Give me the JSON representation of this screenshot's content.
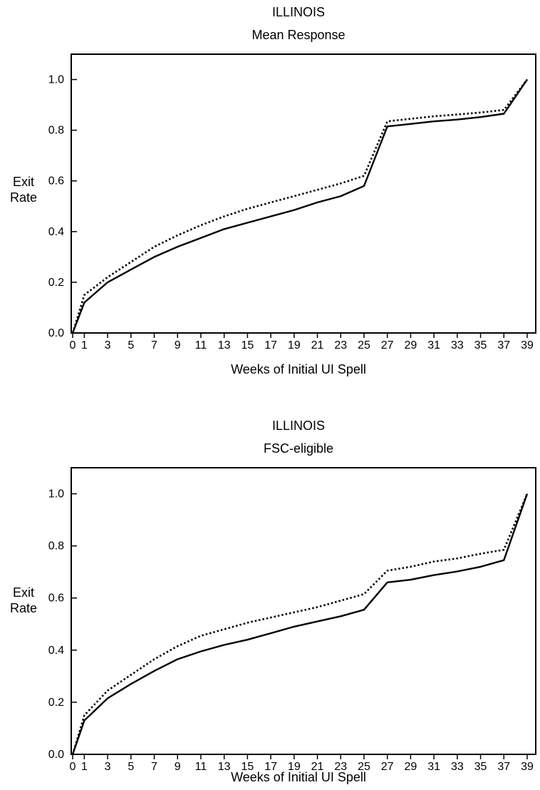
{
  "chart_data": [
    {
      "type": "line",
      "title": "ILLINOIS",
      "subtitle": "Mean Response",
      "ylabel": "Exit Rate",
      "xlabel": "Weeks of Initial UI Spell",
      "x": [
        0,
        1,
        3,
        5,
        7,
        9,
        11,
        13,
        15,
        17,
        19,
        21,
        23,
        25,
        27,
        29,
        31,
        33,
        35,
        37,
        39
      ],
      "xticks": [
        "0",
        "1",
        "3",
        "5",
        "7",
        "9",
        "11",
        "13",
        "15",
        "17",
        "19",
        "21",
        "23",
        "25",
        "27",
        "29",
        "31",
        "33",
        "35",
        "37",
        "39"
      ],
      "yticks": [
        "0.0",
        "0.2",
        "0.4",
        "0.6",
        "0.8",
        "1.0"
      ],
      "ylim": [
        0,
        1.1
      ],
      "grid": false,
      "series": [
        {
          "style": "solid",
          "values": [
            0.0,
            0.12,
            0.2,
            0.25,
            0.3,
            0.34,
            0.375,
            0.41,
            0.435,
            0.46,
            0.485,
            0.515,
            0.54,
            0.58,
            0.815,
            0.825,
            0.835,
            0.842,
            0.852,
            0.865,
            1.0
          ]
        },
        {
          "style": "dotted",
          "values": [
            0.0,
            0.15,
            0.22,
            0.28,
            0.34,
            0.385,
            0.425,
            0.46,
            0.49,
            0.515,
            0.54,
            0.565,
            0.59,
            0.62,
            0.835,
            0.845,
            0.855,
            0.862,
            0.87,
            0.88,
            1.0
          ]
        }
      ]
    },
    {
      "type": "line",
      "title": "ILLINOIS",
      "subtitle": "FSC-eligible",
      "ylabel": "Exit Rate",
      "xlabel": "Weeks of Initial UI Spell",
      "x": [
        0,
        1,
        3,
        5,
        7,
        9,
        11,
        13,
        15,
        17,
        19,
        21,
        23,
        25,
        27,
        29,
        31,
        33,
        35,
        37,
        39
      ],
      "xticks": [
        "0",
        "1",
        "3",
        "5",
        "7",
        "9",
        "11",
        "13",
        "15",
        "17",
        "19",
        "21",
        "23",
        "25",
        "27",
        "29",
        "31",
        "33",
        "35",
        "37",
        "39"
      ],
      "yticks": [
        "0.0",
        "0.2",
        "0.4",
        "0.6",
        "0.8",
        "1.0"
      ],
      "ylim": [
        0,
        1.1
      ],
      "grid": false,
      "series": [
        {
          "style": "solid",
          "values": [
            0.0,
            0.13,
            0.215,
            0.27,
            0.32,
            0.365,
            0.395,
            0.42,
            0.44,
            0.465,
            0.49,
            0.51,
            0.53,
            0.555,
            0.66,
            0.67,
            0.688,
            0.702,
            0.72,
            0.745,
            1.0
          ]
        },
        {
          "style": "dotted",
          "values": [
            0.0,
            0.15,
            0.245,
            0.305,
            0.365,
            0.415,
            0.455,
            0.48,
            0.505,
            0.525,
            0.545,
            0.565,
            0.59,
            0.615,
            0.705,
            0.72,
            0.74,
            0.752,
            0.77,
            0.785,
            1.0
          ]
        }
      ]
    }
  ]
}
